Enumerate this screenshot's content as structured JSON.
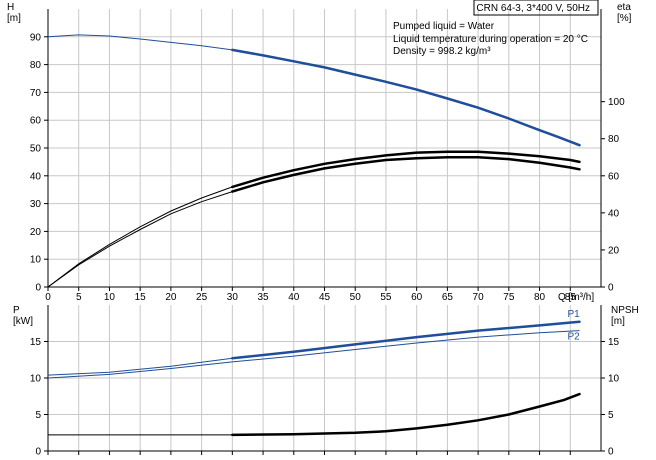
{
  "chart_data": [
    {
      "type": "line",
      "title": "CRN 64-3, 3*400 V, 50Hz",
      "xlabel": "Q [m³/h]",
      "ylabel": "H [m]",
      "ylabel_right": "eta [%]",
      "xlim": [
        0,
        90
      ],
      "ylim": [
        0,
        100
      ],
      "ylim_right": [
        0,
        150
      ],
      "x_ticks": [
        0,
        5,
        10,
        15,
        20,
        25,
        30,
        35,
        40,
        45,
        50,
        55,
        60,
        65,
        70,
        75,
        80,
        85
      ],
      "y_ticks": [
        0,
        10,
        20,
        30,
        40,
        50,
        60,
        70,
        80,
        90
      ],
      "y_ticks_right": [
        0,
        20,
        40,
        60,
        80,
        100
      ],
      "grid": true,
      "annotations": [
        "Pumped liquid = Water",
        "Liquid temperature during operation = 20 °C",
        "Density = 998.2 kg/m³"
      ],
      "series": [
        {
          "axis": "left",
          "color": "#1f4e9a",
          "thick_from_x": 30,
          "points": [
            [
              0,
              90
            ],
            [
              5,
              90.7
            ],
            [
              10,
              90.3
            ],
            [
              15,
              89.2
            ],
            [
              20,
              88
            ],
            [
              25,
              86.8
            ],
            [
              30,
              85.3
            ],
            [
              35,
              83.3
            ],
            [
              40,
              81.2
            ],
            [
              45,
              79
            ],
            [
              50,
              76.4
            ],
            [
              55,
              73.8
            ],
            [
              60,
              71
            ],
            [
              65,
              67.8
            ],
            [
              70,
              64.5
            ],
            [
              75,
              60.6
            ],
            [
              80,
              56.4
            ],
            [
              83,
              54
            ],
            [
              86.5,
              51
            ]
          ]
        },
        {
          "axis": "right",
          "color": "#000000",
          "thick_from_x": 30,
          "points": [
            [
              0,
              0
            ],
            [
              5,
              12
            ],
            [
              10,
              22
            ],
            [
              15,
              31
            ],
            [
              20,
              39.5
            ],
            [
              25,
              46
            ],
            [
              30,
              51.5
            ],
            [
              35,
              56.5
            ],
            [
              40,
              60.5
            ],
            [
              45,
              64
            ],
            [
              50,
              66.5
            ],
            [
              55,
              68.5
            ],
            [
              60,
              69.5
            ],
            [
              65,
              70
            ],
            [
              70,
              70
            ],
            [
              75,
              69
            ],
            [
              80,
              67
            ],
            [
              85,
              64.5
            ],
            [
              86.5,
              63.5
            ]
          ]
        },
        {
          "axis": "right",
          "color": "#000000",
          "thick_from_x": 30,
          "points": [
            [
              0,
              0
            ],
            [
              5,
              12.5
            ],
            [
              10,
              23
            ],
            [
              15,
              32.5
            ],
            [
              20,
              41
            ],
            [
              25,
              48
            ],
            [
              30,
              54
            ],
            [
              35,
              59
            ],
            [
              40,
              63
            ],
            [
              45,
              66.5
            ],
            [
              50,
              69
            ],
            [
              55,
              71
            ],
            [
              60,
              72.5
            ],
            [
              65,
              73
            ],
            [
              70,
              73
            ],
            [
              75,
              72
            ],
            [
              80,
              70.5
            ],
            [
              85,
              68.5
            ],
            [
              86.5,
              67.5
            ]
          ]
        }
      ]
    },
    {
      "type": "line",
      "ylabel": "P [kW]",
      "ylabel_right": "NPSH [m]",
      "xlim": [
        0,
        90
      ],
      "ylim": [
        0,
        20
      ],
      "ylim_right": [
        0,
        20
      ],
      "y_ticks": [
        0,
        5,
        10,
        15
      ],
      "y_ticks_right": [
        0,
        5,
        10,
        15
      ],
      "grid": true,
      "series": [
        {
          "name": "P1",
          "axis": "left",
          "color": "#1f4e9a",
          "thick_from_x": 30,
          "points": [
            [
              0,
              10.4
            ],
            [
              10,
              10.8
            ],
            [
              20,
              11.6
            ],
            [
              30,
              12.7
            ],
            [
              40,
              13.6
            ],
            [
              50,
              14.6
            ],
            [
              60,
              15.6
            ],
            [
              70,
              16.5
            ],
            [
              80,
              17.2
            ],
            [
              86.5,
              17.7
            ]
          ]
        },
        {
          "name": "P2",
          "axis": "left",
          "color": "#1f4e9a",
          "thick_from_x": 100,
          "points": [
            [
              0,
              10
            ],
            [
              10,
              10.5
            ],
            [
              20,
              11.3
            ],
            [
              30,
              12.2
            ],
            [
              40,
              13
            ],
            [
              50,
              13.9
            ],
            [
              60,
              14.8
            ],
            [
              70,
              15.6
            ],
            [
              80,
              16.2
            ],
            [
              86.5,
              16.5
            ]
          ]
        },
        {
          "axis": "right",
          "color": "#000000",
          "thick_from_x": 30,
          "points": [
            [
              0,
              2.2
            ],
            [
              10,
              2.2
            ],
            [
              20,
              2.2
            ],
            [
              30,
              2.2
            ],
            [
              40,
              2.3
            ],
            [
              50,
              2.5
            ],
            [
              55,
              2.7
            ],
            [
              60,
              3.1
            ],
            [
              65,
              3.6
            ],
            [
              70,
              4.2
            ],
            [
              75,
              5
            ],
            [
              80,
              6.1
            ],
            [
              84,
              7
            ],
            [
              86.5,
              7.8
            ]
          ]
        }
      ]
    }
  ]
}
